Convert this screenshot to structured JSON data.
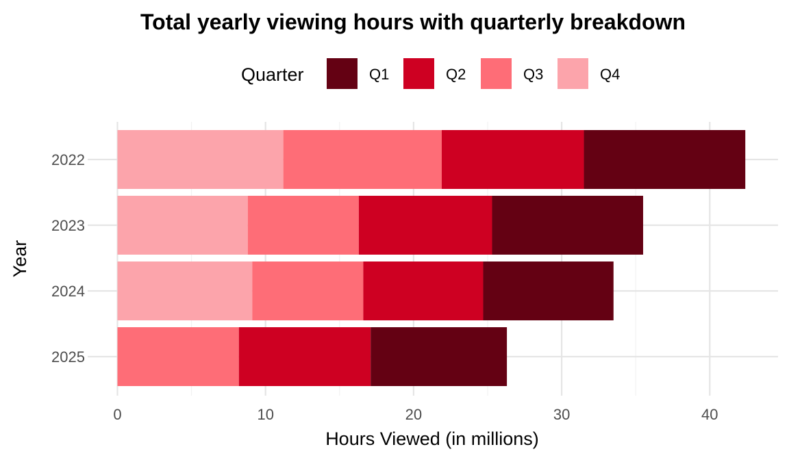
{
  "chart_data": {
    "type": "bar",
    "orientation": "horizontal",
    "stacked": true,
    "title": "Total yearly viewing hours with quarterly breakdown",
    "xlabel": "Hours Viewed (in millions)",
    "ylabel": "Year",
    "categories": [
      "2022",
      "2023",
      "2024",
      "2025"
    ],
    "series": [
      {
        "name": "Q4",
        "color": "#fca4ab",
        "values": [
          11.2,
          8.8,
          9.1,
          0
        ]
      },
      {
        "name": "Q3",
        "color": "#fe6d77",
        "values": [
          10.7,
          7.5,
          7.5,
          8.2
        ]
      },
      {
        "name": "Q2",
        "color": "#ce0022",
        "values": [
          9.6,
          9.0,
          8.1,
          8.9
        ]
      },
      {
        "name": "Q1",
        "color": "#640113",
        "values": [
          10.9,
          10.2,
          8.8,
          9.2
        ]
      }
    ],
    "xlim": [
      0,
      45
    ],
    "xticks": [
      0,
      10,
      20,
      30,
      40
    ],
    "grid": true,
    "legend": {
      "title": "Quarter",
      "position": "top",
      "entries": [
        {
          "label": "Q1",
          "color": "#640113"
        },
        {
          "label": "Q2",
          "color": "#ce0022"
        },
        {
          "label": "Q3",
          "color": "#fe6d77"
        },
        {
          "label": "Q4",
          "color": "#fca4ab"
        }
      ]
    }
  }
}
